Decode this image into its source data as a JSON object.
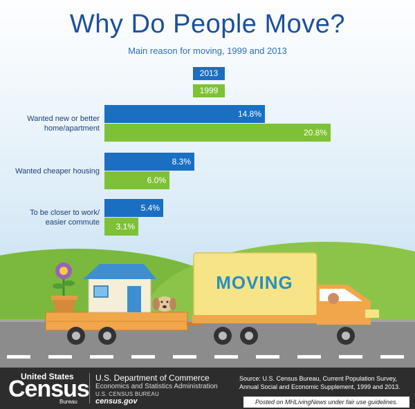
{
  "header": {
    "title": "Why Do People Move?",
    "subtitle": "Main reason for moving, 1999 and 2013"
  },
  "colors": {
    "series_2013": "#1a6fc2",
    "series_1999": "#7ec136",
    "title": "#1c4f9c"
  },
  "chart_data": {
    "type": "bar",
    "orientation": "horizontal",
    "categories": [
      [
        "Wanted new or better",
        "home/apartment"
      ],
      [
        "Wanted cheaper housing"
      ],
      [
        "To be closer to work/",
        "easier commute"
      ]
    ],
    "series": [
      {
        "name": "2013",
        "values": [
          14.8,
          8.3,
          5.4
        ],
        "labels": [
          "14.8%",
          "8.3%",
          "5.4%"
        ]
      },
      {
        "name": "1999",
        "values": [
          20.8,
          6.0,
          3.1
        ],
        "labels": [
          "20.8%",
          "6.0%",
          "3.1%"
        ]
      }
    ],
    "legend": "top-center",
    "grid": false
  },
  "illustration": {
    "truck_text": "MOVING"
  },
  "footer": {
    "logo_top": "United States",
    "logo_main": "Census",
    "logo_bottom": "Bureau",
    "department": "U.S. Department of Commerce",
    "administration": "Economics and Statistics Administration",
    "bureau": "U.S. CENSUS BUREAU",
    "website": "census.gov",
    "source": "Source: U.S. Census Bureau, Current Population Survey, Annual Social and Economic Supplement, 1999 and 2013.",
    "posted": "Posted on MHLivingNews under fair use guidelines."
  }
}
